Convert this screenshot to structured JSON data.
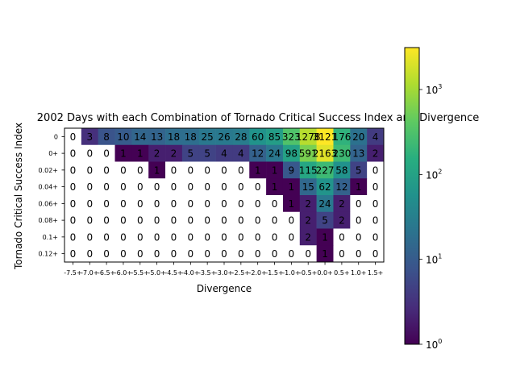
{
  "chart_data": {
    "type": "heatmap",
    "title": "2002 Days with each Combination of Tornado Critical Success Index and Divergence",
    "xlabel": "Divergence",
    "ylabel": "Tornado Critical Success Index",
    "x_categories": [
      "-7.5+",
      "-7.0+",
      "-6.5+",
      "-6.0+",
      "-5.5+",
      "-5.0+",
      "-4.5+",
      "-4.0+",
      "-3.5+",
      "-3.0+",
      "-2.5+",
      "-2.0+",
      "-1.5+",
      "-1.0+",
      "-0.5+",
      "0.0+",
      "0.5+",
      "1.0+",
      "1.5+"
    ],
    "y_categories": [
      "0",
      "0+",
      "0.02+",
      "0.04+",
      "0.06+",
      "0.08+",
      "0.1+",
      "0.12+"
    ],
    "values": [
      [
        0,
        3,
        8,
        10,
        14,
        13,
        18,
        18,
        25,
        26,
        28,
        60,
        85,
        323,
        1278,
        3121,
        176,
        20,
        4
      ],
      [
        0,
        0,
        0,
        1,
        1,
        2,
        2,
        5,
        5,
        4,
        4,
        12,
        24,
        98,
        591,
        2163,
        230,
        13,
        2
      ],
      [
        0,
        0,
        0,
        0,
        0,
        1,
        0,
        0,
        0,
        0,
        0,
        1,
        1,
        9,
        115,
        227,
        58,
        5,
        0
      ],
      [
        0,
        0,
        0,
        0,
        0,
        0,
        0,
        0,
        0,
        0,
        0,
        0,
        1,
        1,
        15,
        62,
        12,
        1,
        0
      ],
      [
        0,
        0,
        0,
        0,
        0,
        0,
        0,
        0,
        0,
        0,
        0,
        0,
        0,
        1,
        2,
        24,
        2,
        0,
        0
      ],
      [
        0,
        0,
        0,
        0,
        0,
        0,
        0,
        0,
        0,
        0,
        0,
        0,
        0,
        0,
        2,
        5,
        2,
        0,
        0
      ],
      [
        0,
        0,
        0,
        0,
        0,
        0,
        0,
        0,
        0,
        0,
        0,
        0,
        0,
        0,
        2,
        1,
        0,
        0,
        0
      ],
      [
        0,
        0,
        0,
        0,
        0,
        0,
        0,
        0,
        0,
        0,
        0,
        0,
        0,
        0,
        0,
        1,
        0,
        0,
        0
      ]
    ],
    "color_scale": "log",
    "colormap": "viridis",
    "zero_color": "#ffffff",
    "colorbar": {
      "range": [
        1,
        3121
      ],
      "ticks": [
        {
          "value": 1,
          "base": "10",
          "exp": "0"
        },
        {
          "value": 10,
          "base": "10",
          "exp": "1"
        },
        {
          "value": 100,
          "base": "10",
          "exp": "2"
        },
        {
          "value": 1000,
          "base": "10",
          "exp": "3"
        }
      ]
    }
  }
}
